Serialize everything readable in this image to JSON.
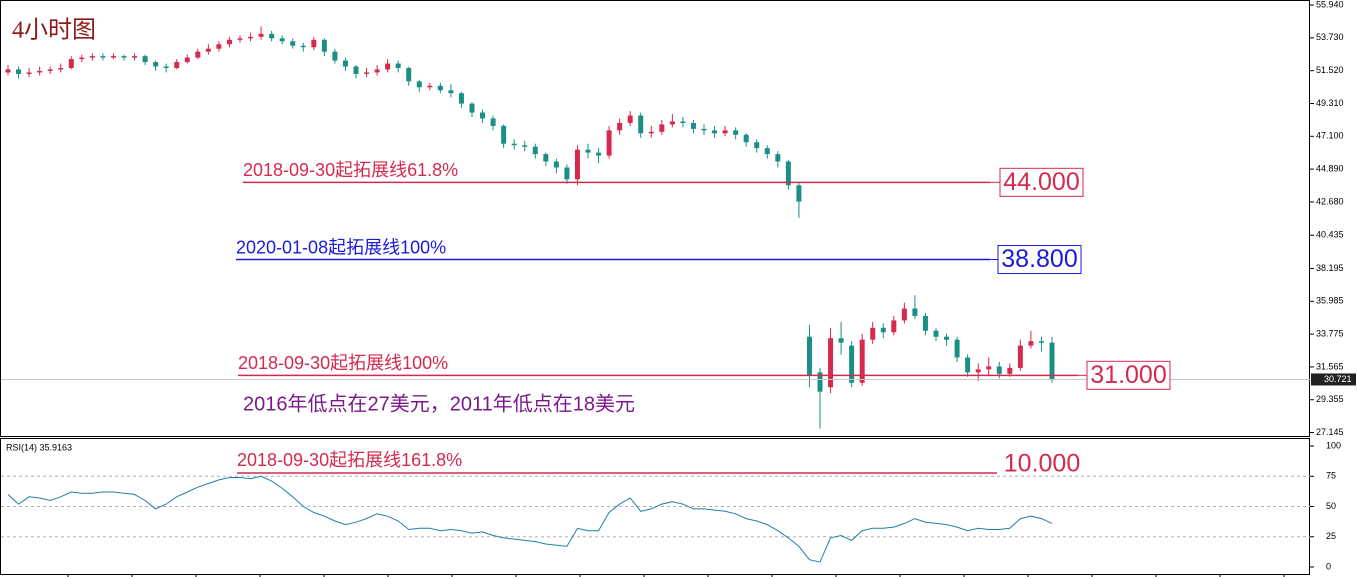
{
  "chart_data": [
    {
      "type": "candlestick",
      "title": "4小时图",
      "open": [
        51.4,
        51.6,
        51.3,
        51.4,
        51.5,
        51.6,
        51.7,
        52.3,
        52.4,
        52.5,
        52.4,
        52.5,
        52.4,
        52.5,
        52.1,
        51.8,
        51.7,
        52.1,
        52.4,
        52.8,
        53.0,
        53.3,
        53.6,
        53.7,
        53.8,
        54.0,
        53.7,
        53.5,
        53.2,
        53.1,
        53.6,
        52.8,
        52.2,
        51.8,
        51.3,
        51.4,
        51.6,
        52.0,
        51.7,
        50.8,
        50.4,
        50.5,
        50.2,
        50.0,
        49.3,
        48.7,
        48.3,
        47.8,
        46.6,
        46.5,
        46.4,
        45.9,
        45.4,
        45.0,
        44.2,
        46.2,
        46.0,
        45.8,
        47.5,
        48.0,
        48.5,
        47.3,
        47.4,
        47.9,
        48.1,
        48.0,
        47.6,
        47.5,
        47.3,
        47.5,
        47.2,
        46.7,
        46.3,
        45.9,
        45.4,
        43.8,
        33.6,
        31.2,
        30.2,
        33.5,
        33.0,
        30.5,
        33.4,
        34.2,
        33.9,
        34.7,
        35.5,
        35.0,
        34.0,
        33.6,
        33.4,
        32.2,
        31.2,
        31.4,
        31.6,
        31.1,
        31.5,
        33.0,
        33.3,
        33.2
      ],
      "high": [
        51.9,
        51.8,
        51.7,
        51.8,
        51.8,
        52.0,
        52.5,
        52.6,
        52.7,
        52.7,
        52.7,
        52.6,
        52.7,
        52.6,
        52.2,
        52.0,
        52.3,
        52.6,
        53.0,
        53.3,
        53.5,
        53.8,
        53.9,
        54.1,
        54.5,
        54.2,
        53.9,
        53.7,
        53.4,
        53.8,
        53.7,
        53.0,
        52.4,
        51.9,
        51.7,
        51.9,
        52.3,
        52.2,
        51.8,
        50.9,
        50.7,
        50.7,
        50.6,
        50.1,
        49.4,
        48.9,
        48.5,
        47.9,
        46.9,
        46.8,
        46.6,
        46.0,
        45.6,
        45.2,
        46.5,
        46.6,
        46.3,
        47.8,
        48.3,
        48.8,
        48.7,
        47.8,
        48.2,
        48.6,
        48.4,
        48.2,
        47.9,
        47.8,
        47.8,
        47.7,
        47.3,
        46.9,
        46.5,
        46.1,
        45.5,
        44.0,
        34.4,
        31.5,
        34.2,
        34.6,
        33.3,
        33.8,
        34.6,
        34.5,
        35.0,
        35.9,
        36.4,
        35.2,
        34.2,
        33.8,
        33.6,
        32.4,
        31.8,
        32.2,
        31.9,
        31.8,
        33.4,
        34.0,
        33.6,
        33.6
      ],
      "low": [
        51.2,
        51.0,
        51.1,
        51.2,
        51.3,
        51.4,
        51.6,
        52.1,
        52.2,
        52.2,
        52.3,
        52.2,
        52.2,
        51.9,
        51.5,
        51.4,
        51.6,
        52.0,
        52.3,
        52.6,
        52.8,
        53.1,
        53.4,
        53.5,
        53.6,
        53.5,
        53.3,
        53.0,
        52.8,
        52.9,
        52.5,
        52.0,
        51.5,
        51.0,
        51.1,
        51.2,
        51.4,
        51.4,
        50.5,
        50.1,
        50.2,
        50.0,
        49.7,
        49.0,
        48.4,
        48.0,
        47.5,
        46.3,
        46.2,
        46.1,
        45.6,
        45.1,
        44.6,
        43.9,
        43.8,
        45.6,
        45.3,
        45.6,
        47.2,
        47.8,
        47.0,
        47.0,
        47.2,
        47.7,
        47.7,
        47.3,
        47.2,
        47.0,
        47.1,
        46.9,
        46.4,
        46.0,
        45.6,
        45.0,
        43.5,
        41.6,
        30.2,
        27.4,
        29.8,
        32.4,
        30.2,
        30.3,
        33.1,
        33.5,
        33.7,
        34.5,
        34.8,
        33.7,
        33.3,
        33.0,
        31.9,
        30.9,
        30.6,
        31.0,
        30.8,
        30.9,
        31.3,
        32.8,
        32.6,
        30.5
      ],
      "close": [
        51.6,
        51.3,
        51.4,
        51.5,
        51.6,
        51.7,
        52.3,
        52.4,
        52.5,
        52.4,
        52.5,
        52.4,
        52.5,
        52.1,
        51.8,
        51.7,
        52.1,
        52.4,
        52.8,
        53.0,
        53.3,
        53.6,
        53.7,
        53.8,
        54.0,
        53.7,
        53.5,
        53.2,
        53.1,
        53.6,
        52.8,
        52.2,
        51.8,
        51.3,
        51.4,
        51.6,
        52.0,
        51.7,
        50.8,
        50.4,
        50.5,
        50.2,
        50.0,
        49.3,
        48.7,
        48.3,
        47.8,
        46.6,
        46.5,
        46.4,
        45.9,
        45.4,
        45.0,
        44.2,
        46.2,
        46.0,
        45.8,
        47.5,
        48.0,
        48.5,
        47.3,
        47.4,
        47.9,
        48.1,
        48.0,
        47.6,
        47.5,
        47.3,
        47.5,
        47.2,
        46.7,
        46.3,
        45.9,
        45.4,
        43.8,
        42.7,
        31.0,
        29.9,
        33.5,
        33.2,
        30.5,
        33.4,
        34.2,
        33.9,
        34.7,
        35.5,
        35.0,
        34.0,
        33.6,
        33.4,
        32.2,
        31.2,
        31.4,
        31.6,
        31.1,
        31.5,
        33.0,
        33.3,
        33.2,
        30.721
      ],
      "up_color": "#d42a4e",
      "down_color": "#1b8f86",
      "ylim": [
        26.98,
        56.28
      ],
      "yticks": [
        {
          "value": 55.94,
          "label": "55.940"
        },
        {
          "value": 53.73,
          "label": "53.730"
        },
        {
          "value": 51.52,
          "label": "51.520"
        },
        {
          "value": 49.31,
          "label": "49.310"
        },
        {
          "value": 47.1,
          "label": "47.100"
        },
        {
          "value": 44.89,
          "label": "44.890"
        },
        {
          "value": 42.68,
          "label": "42.680"
        },
        {
          "value": 40.435,
          "label": "40.435"
        },
        {
          "value": 38.195,
          "label": "38.195"
        },
        {
          "value": 35.985,
          "label": "35.985"
        },
        {
          "value": 33.775,
          "label": "33.775"
        },
        {
          "value": 31.565,
          "label": "31.565"
        },
        {
          "value": 29.355,
          "label": "29.355"
        },
        {
          "value": 27.145,
          "label": "27.145"
        }
      ],
      "last_price": 30.721,
      "levels": [
        {
          "label": "2018-09-30起拓展线61.8%",
          "value": 44,
          "value_label": "44.000",
          "color": "#d42a4e"
        },
        {
          "label": "2020-01-08起拓展线100%",
          "value": 38.8,
          "value_label": "38.800",
          "color": "#1a1adc"
        },
        {
          "label": "2018-09-30起拓展线100%",
          "value": 31,
          "value_label": "31.000",
          "color": "#d42a4e"
        }
      ],
      "annotation": "2016年低点在27美元，2011年低点在18美元"
    },
    {
      "type": "line",
      "title": "RSI(14) 35.9163",
      "values": [
        60,
        52,
        58,
        57,
        55,
        58,
        62,
        61,
        61,
        62,
        62,
        61,
        60,
        55,
        48,
        52,
        58,
        62,
        66,
        69,
        72,
        74,
        74,
        73,
        75,
        71,
        65,
        58,
        50,
        45,
        42,
        38,
        35,
        37,
        40,
        44,
        42,
        38,
        31,
        32,
        32,
        30,
        31,
        30,
        28,
        29,
        26,
        24,
        23,
        22,
        21,
        19,
        18,
        17,
        32,
        30,
        30,
        45,
        52,
        57,
        46,
        48,
        52,
        54,
        52,
        48,
        48,
        47,
        46,
        44,
        40,
        38,
        35,
        30,
        24,
        17,
        6,
        4,
        24,
        26,
        22,
        30,
        32,
        32,
        33,
        36,
        40,
        37,
        36,
        35,
        33,
        30,
        32,
        31,
        31,
        32,
        40,
        42,
        40,
        36
      ],
      "color": "#1f7fa6",
      "ylim": [
        -5,
        105
      ],
      "yticks": [
        100,
        75,
        50,
        25,
        0
      ],
      "grid": true,
      "levels": [
        {
          "label": "2018-09-30起拓展线161.8%",
          "value_label": "10.000",
          "color": "#d42a4e"
        }
      ]
    }
  ]
}
